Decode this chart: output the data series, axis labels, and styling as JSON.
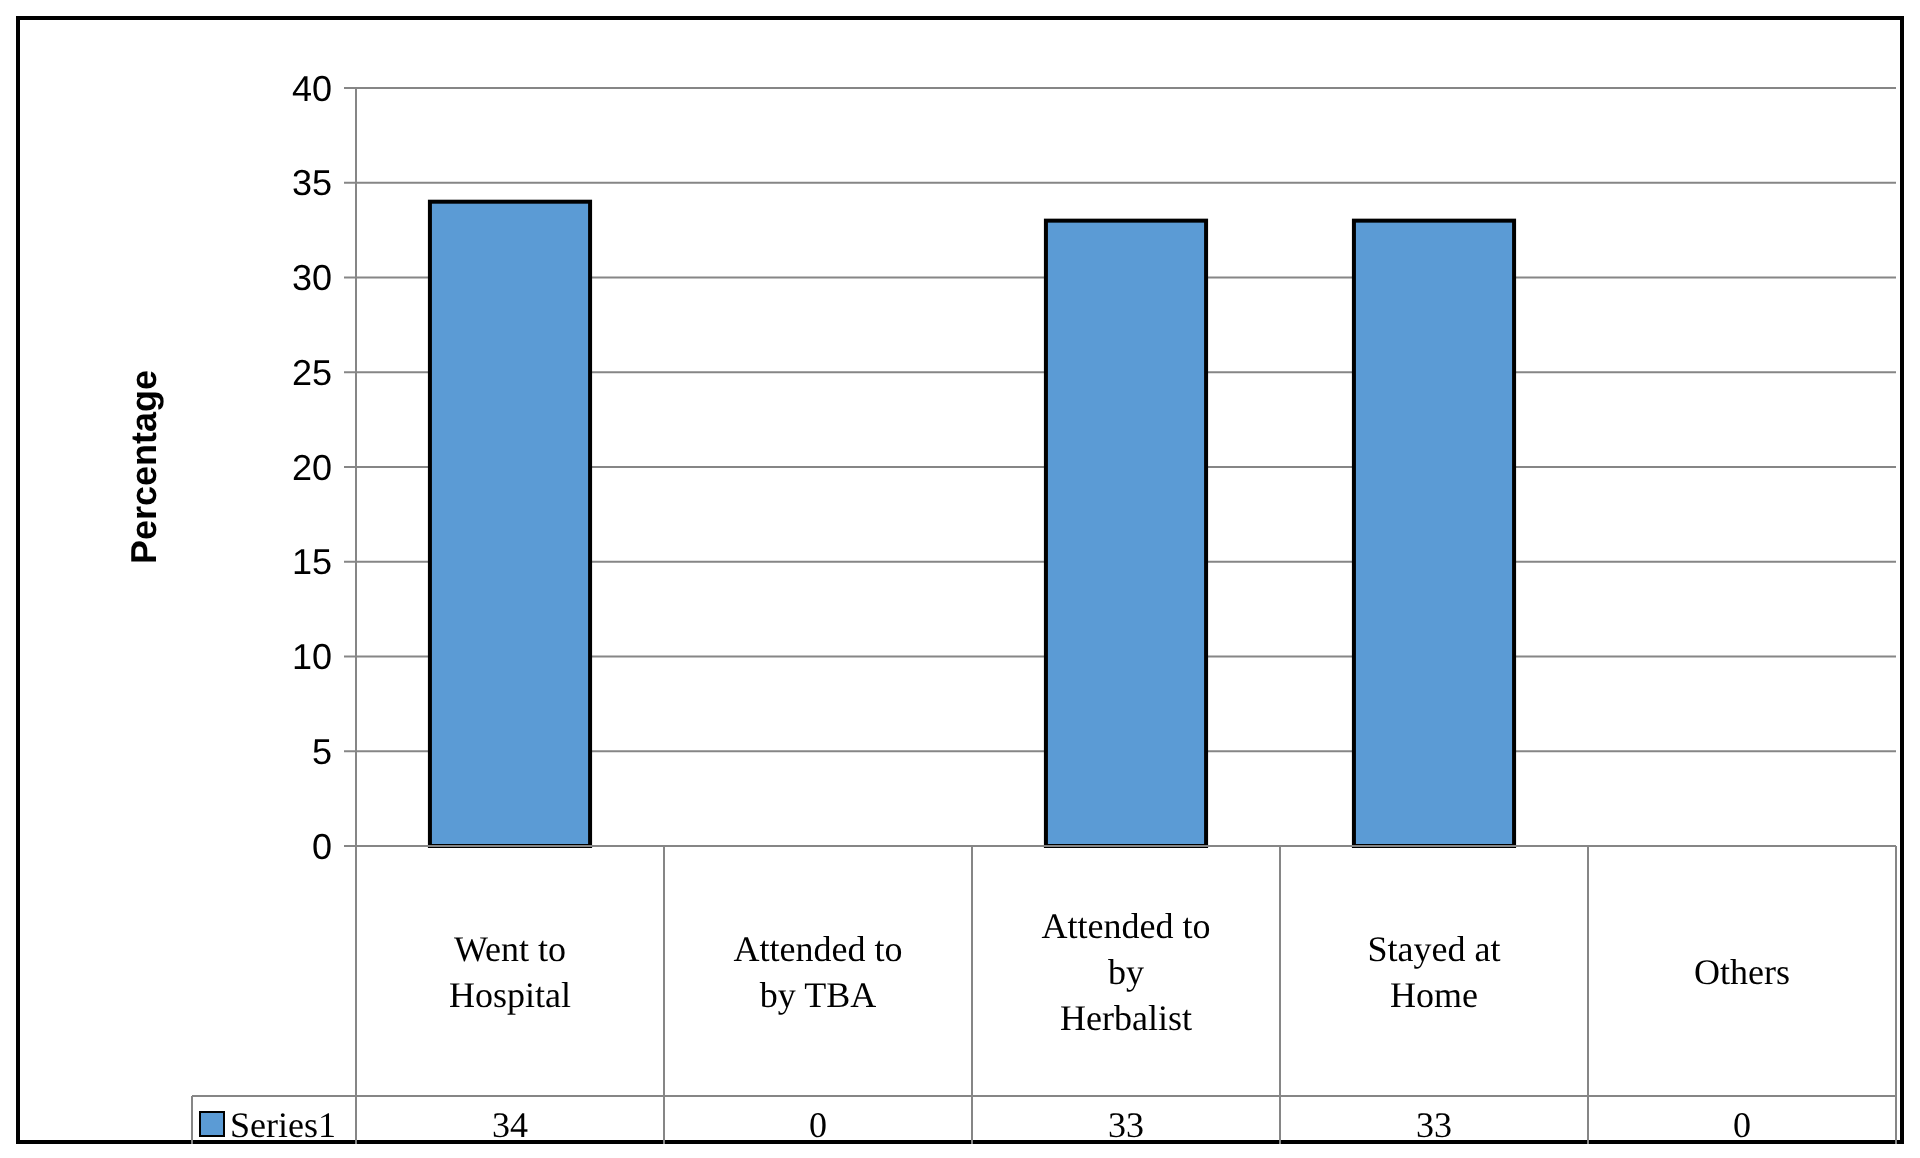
{
  "chart_data": {
    "type": "bar",
    "ylabel": "Percentage",
    "categories": [
      "Went to Hospital",
      "Attended to by TBA",
      "Attended to by Herbalist",
      "Stayed at Home",
      "Others"
    ],
    "series": [
      {
        "name": "Series1",
        "color": "#5b9bd5",
        "values": [
          34,
          0,
          33,
          33,
          0
        ]
      }
    ],
    "ylim": [
      0,
      40
    ],
    "yticks": [
      0,
      5,
      10,
      15,
      20,
      25,
      30,
      35,
      40
    ],
    "grid": "y",
    "legend": "bottom",
    "data_labels": true
  }
}
